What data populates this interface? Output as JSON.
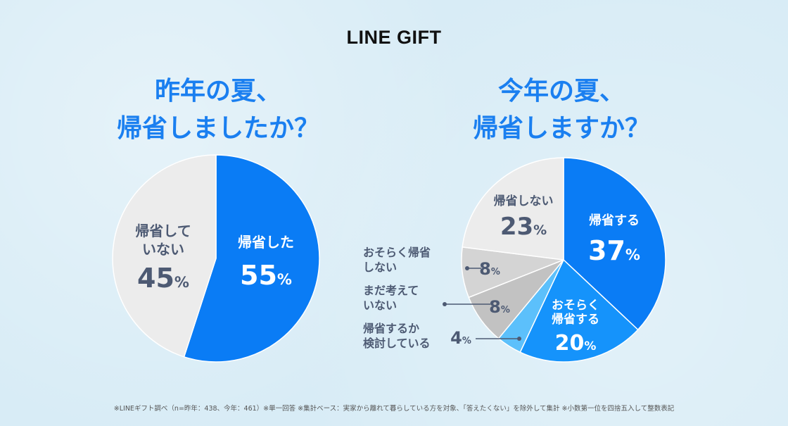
{
  "brand": {
    "logo_text": "LINE GIFT"
  },
  "colors": {
    "background": "#d8ecf6",
    "title_blue": "#1a7ff0",
    "blue": "#0a7cf5",
    "blue_mid": "#1593fb",
    "blue_light": "#5cc0fb",
    "gray_light": "#ececec",
    "gray_mid": "#d4d4d4",
    "gray_dark": "#c2c2c2",
    "label_dark": "#4d5a73"
  },
  "chart_data": [
    {
      "type": "pie",
      "title_line1": "昨年の夏、",
      "title_line2": "帰省しましたか？",
      "percent_sign": "%",
      "slices": [
        {
          "label_lines": [
            "帰省した"
          ],
          "value": 55,
          "color": "#0a7cf5"
        },
        {
          "label_lines": [
            "帰省して",
            "いない"
          ],
          "value": 45,
          "color": "#ececec"
        }
      ]
    },
    {
      "type": "pie",
      "title_line1": "今年の夏、",
      "title_line2": "帰省しますか？",
      "percent_sign": "%",
      "slices": [
        {
          "label_lines": [
            "帰省する"
          ],
          "value": 37,
          "color": "#0a7cf5"
        },
        {
          "label_lines": [
            "おそらく",
            "帰省する"
          ],
          "value": 20,
          "color": "#1593fb"
        },
        {
          "label_lines": [
            "帰省するか",
            "検討している"
          ],
          "value": 4,
          "color": "#5cc0fb"
        },
        {
          "label_lines": [
            "まだ考えて",
            "いない"
          ],
          "value": 8,
          "color": "#c2c2c2"
        },
        {
          "label_lines": [
            "おそらく帰省",
            "しない"
          ],
          "value": 8,
          "color": "#d4d4d4"
        },
        {
          "label_lines": [
            "帰省しない"
          ],
          "value": 23,
          "color": "#ececec"
        }
      ]
    }
  ],
  "footnote": "※LINEギフト調べ（n=昨年：438、今年：461）※単一回答 ※集計ベース：実家から離れて暮らしている方を対象、「答えたくない」を除外して集計 ※小数第一位を四捨五入して整数表記"
}
